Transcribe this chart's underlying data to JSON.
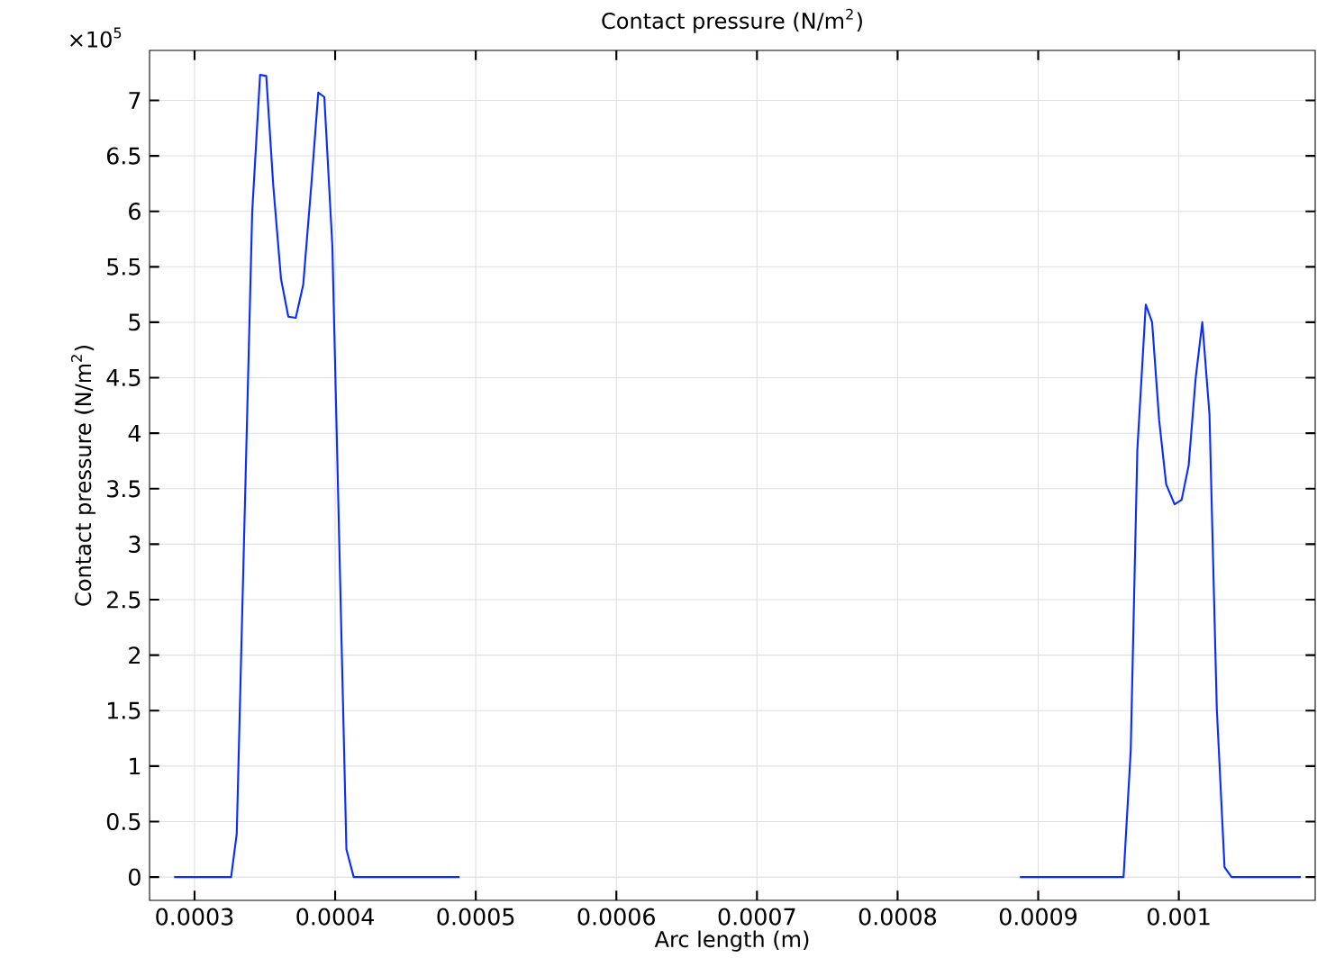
{
  "chart_data": {
    "type": "line",
    "title": "Contact pressure (N/m$^{2}$)",
    "xlabel": "Arc length (m)",
    "ylabel": "Contact pressure (N/m$^{2}$)",
    "annotations": [
      "×10$^{5}$"
    ],
    "x": [
      0.0002855,
      0.000326,
      0.00033,
      0.000341,
      0.0003466,
      0.000351,
      0.000356,
      0.0003615,
      0.0003667,
      0.000372,
      0.0003773,
      0.000383,
      0.000388,
      0.0003923,
      0.000398,
      0.000408,
      0.0004132,
      0.0004885,
      0.0006875,
      0.000887,
      0.0009607,
      0.0009658,
      0.0009705,
      0.0009765,
      0.000981,
      0.000986,
      0.000991,
      0.000997,
      0.001002,
      0.001007,
      0.001012,
      0.0010167,
      0.0010218,
      0.001027,
      0.0010325,
      0.0010375,
      0.0010868
    ],
    "series": [
      {
        "color": "#0a2dff",
        "values": [
          0,
          0,
          0.39,
          5.99,
          7.23,
          7.22,
          6.23,
          5.39,
          5.05,
          5.04,
          5.34,
          6.23,
          7.07,
          7.03,
          5.69,
          0.25,
          0,
          0,
          null,
          0,
          0,
          1.14,
          3.85,
          5.16,
          5.0,
          4.12,
          3.54,
          3.36,
          3.4,
          3.71,
          4.5,
          5.0,
          4.17,
          1.52,
          0.09,
          0,
          0
        ]
      }
    ],
    "xlim": [
      0.000268,
      0.001097
    ],
    "ylim": [
      -0.21,
      7.45
    ],
    "xticks": [
      0.0003,
      0.0004,
      0.0005,
      0.0006,
      0.0007,
      0.0008,
      0.0009,
      0.001
    ],
    "yticks": [
      0,
      0.5,
      1,
      1.5,
      2,
      2.5,
      3,
      3.5,
      4,
      4.5,
      5,
      5.5,
      6,
      6.5,
      7
    ],
    "grid": true,
    "marker": "none",
    "line_style": "solid"
  }
}
